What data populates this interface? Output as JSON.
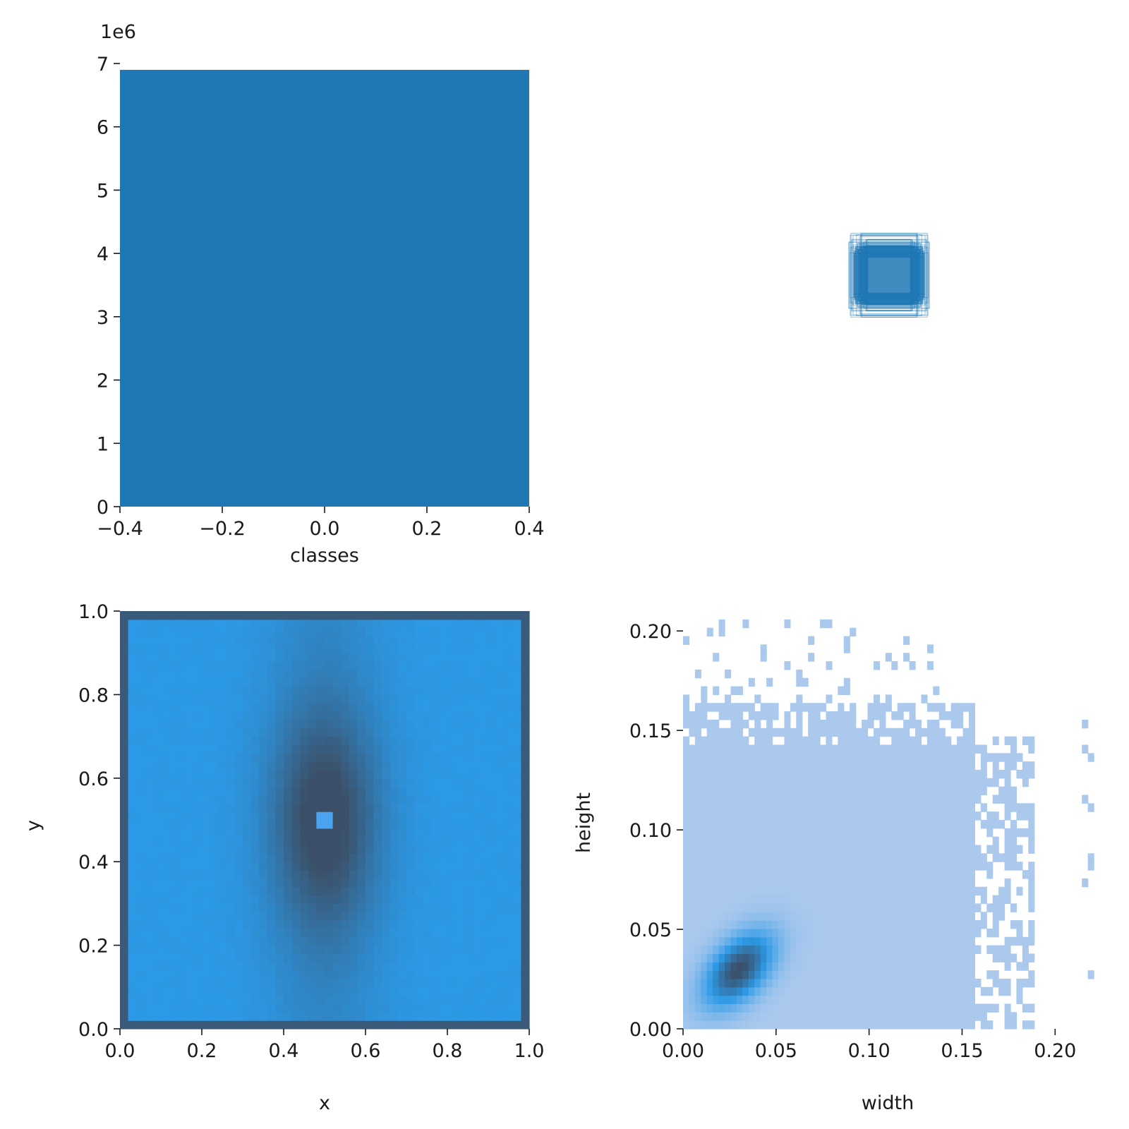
{
  "chart_data": [
    {
      "id": "classes-hist",
      "type": "bar",
      "xlabel": "classes",
      "ylabel": "",
      "y_offset_label": "1e6",
      "xlim": [
        -0.4,
        0.4
      ],
      "ylim": [
        0,
        7000000
      ],
      "x_ticks": [
        "−0.4",
        "−0.2",
        "0.0",
        "0.2",
        "0.4"
      ],
      "y_ticks": [
        "0",
        "1",
        "2",
        "3",
        "4",
        "5",
        "6",
        "7"
      ],
      "bars": [
        {
          "x0": -0.4,
          "x1": 0.4,
          "value": 6900000
        }
      ],
      "color": "#1f77b4"
    },
    {
      "id": "box-overlay",
      "type": "scatter",
      "xlabel": "",
      "ylabel": "",
      "description_color": "#1f77b4",
      "center": [
        0.5,
        0.5
      ]
    },
    {
      "id": "xy-heatmap",
      "type": "heatmap",
      "xlabel": "x",
      "ylabel": "y",
      "xlim": [
        0,
        1
      ],
      "ylim": [
        0,
        1
      ],
      "x_ticks": [
        "0.0",
        "0.2",
        "0.4",
        "0.6",
        "0.8",
        "1.0"
      ],
      "y_ticks": [
        "0.0",
        "0.2",
        "0.4",
        "0.6",
        "0.8",
        "1.0"
      ],
      "bins": 50,
      "peak": [
        0.5,
        0.5
      ],
      "colors": {
        "low": "#2c99e6",
        "high": "#3b5068",
        "edge": "#3a5a7a",
        "center_spot": "#4aa3f0"
      }
    },
    {
      "id": "wh-heatmap",
      "type": "heatmap",
      "xlabel": "width",
      "ylabel": "height",
      "xlim": [
        0,
        0.22
      ],
      "ylim": [
        0,
        0.21
      ],
      "x_ticks": [
        "0.00",
        "0.05",
        "0.10",
        "0.15",
        "0.20"
      ],
      "y_ticks": [
        "0.00",
        "0.05",
        "0.10",
        "0.15",
        "0.20"
      ],
      "peak": [
        0.03,
        0.03
      ],
      "colors": {
        "low": "#abc9ed",
        "mid": "#2c99e6",
        "high": "#3b4f68"
      }
    }
  ]
}
